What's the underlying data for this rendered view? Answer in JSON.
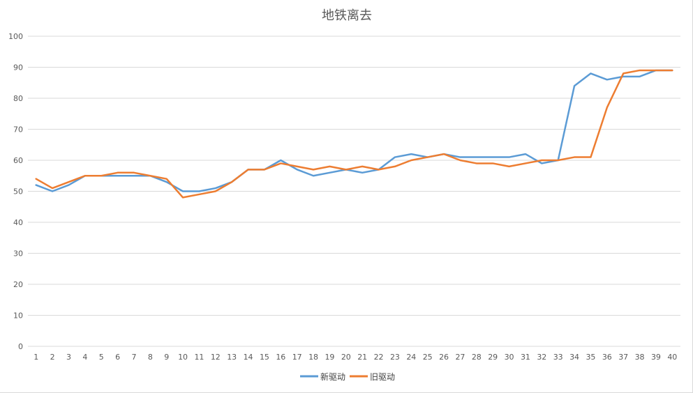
{
  "chart_data": {
    "type": "line",
    "title": "地铁离去",
    "xlabel": "",
    "ylabel": "",
    "ylim": [
      0,
      100
    ],
    "yticks": [
      0,
      10,
      20,
      30,
      40,
      50,
      60,
      70,
      80,
      90,
      100
    ],
    "x": [
      1,
      2,
      3,
      4,
      5,
      6,
      7,
      8,
      9,
      10,
      11,
      12,
      13,
      14,
      15,
      16,
      17,
      18,
      19,
      20,
      21,
      22,
      23,
      24,
      25,
      26,
      27,
      28,
      29,
      30,
      31,
      32,
      33,
      34,
      35,
      36,
      37,
      38,
      39,
      40
    ],
    "grid": "horizontal",
    "legend_position": "bottom",
    "series": [
      {
        "name": "新驱动",
        "color": "#5b9bd5",
        "values": [
          52,
          50,
          52,
          55,
          55,
          55,
          55,
          55,
          53,
          50,
          50,
          51,
          53,
          57,
          57,
          60,
          57,
          55,
          56,
          57,
          56,
          57,
          61,
          62,
          61,
          62,
          61,
          61,
          61,
          61,
          62,
          59,
          60,
          84,
          88,
          86,
          87,
          87,
          89,
          89
        ]
      },
      {
        "name": "旧驱动",
        "color": "#ed7d31",
        "values": [
          54,
          51,
          53,
          55,
          55,
          56,
          56,
          55,
          54,
          48,
          49,
          50,
          53,
          57,
          57,
          59,
          58,
          57,
          58,
          57,
          58,
          57,
          58,
          60,
          61,
          62,
          60,
          59,
          59,
          58,
          59,
          60,
          60,
          61,
          61,
          77,
          88,
          89,
          89,
          89
        ]
      }
    ]
  }
}
